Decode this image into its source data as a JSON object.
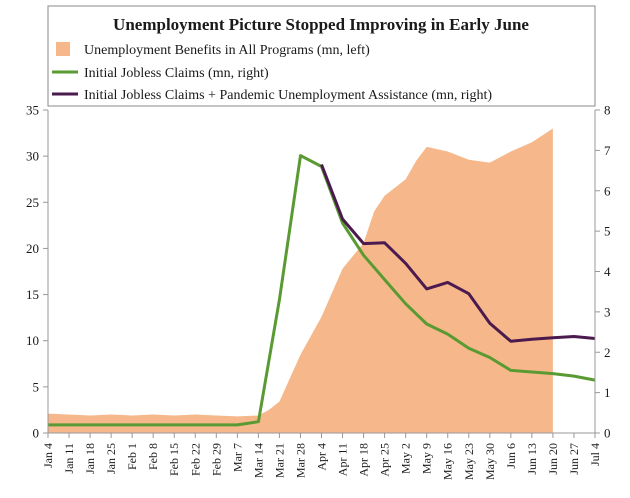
{
  "chart_data": {
    "type": "line",
    "title": "Unemployment Picture Stopped Improving in Early June",
    "categories": [
      "Jan 4",
      "Jan 11",
      "Jan 18",
      "Jan 25",
      "Feb 1",
      "Feb 8",
      "Feb 15",
      "Feb 22",
      "Feb 29",
      "Mar 7",
      "Mar 14",
      "Mar 21",
      "Mar 28",
      "Apr 4",
      "Apr 11",
      "Apr 18",
      "Apr 25",
      "May 2",
      "May 9",
      "May 16",
      "May 23",
      "May 30",
      "Jun 6",
      "Jun 13",
      "Jun 20",
      "Jun 27",
      "Jul 4"
    ],
    "y_left": {
      "ticks": [
        0,
        5,
        10,
        15,
        20,
        25,
        30,
        35
      ],
      "ylim": [
        0,
        35
      ]
    },
    "y_right": {
      "ticks": [
        0,
        1,
        2,
        3,
        4,
        5,
        6,
        7,
        8
      ],
      "ylim": [
        0,
        8
      ]
    },
    "series": [
      {
        "name": "Unemployment Benefits in All Programs (mn, left)",
        "kind": "area",
        "axis": "left",
        "color": "#f6b88b",
        "x": [
          0,
          1,
          2,
          3,
          4,
          5,
          6,
          7,
          8,
          9,
          10,
          10.5,
          11,
          12,
          13,
          14,
          15,
          15.5,
          16,
          17,
          17.5,
          18,
          19,
          20,
          21,
          22,
          23,
          24
        ],
        "values": [
          2.1,
          2.0,
          1.9,
          2.0,
          1.9,
          2.0,
          1.9,
          2.0,
          1.9,
          1.8,
          1.9,
          2.5,
          3.4,
          8.5,
          12.6,
          17.8,
          20.6,
          24.0,
          25.7,
          27.5,
          29.5,
          31.0,
          30.5,
          29.6,
          29.3,
          30.5,
          31.5,
          33.0
        ]
      },
      {
        "name": "Initial Jobless Claims (mn, right)",
        "kind": "line",
        "axis": "right",
        "color": "#5a9a32",
        "values": [
          0.2,
          0.2,
          0.2,
          0.2,
          0.2,
          0.2,
          0.2,
          0.2,
          0.2,
          0.2,
          0.28,
          3.3,
          6.87,
          6.6,
          5.2,
          4.4,
          3.8,
          3.2,
          2.7,
          2.45,
          2.1,
          1.87,
          1.55,
          1.51,
          1.47,
          1.41,
          1.31
        ]
      },
      {
        "name": "Initial Jobless Claims + Pandemic Unemployment Assistance (mn, right)",
        "kind": "line",
        "axis": "right",
        "color": "#4b1a4e",
        "x": [
          13,
          14,
          15,
          16,
          17,
          18,
          19,
          20,
          21,
          22,
          23,
          24,
          25,
          26
        ],
        "values": [
          6.65,
          5.3,
          4.69,
          4.71,
          4.2,
          3.57,
          3.73,
          3.45,
          2.72,
          2.27,
          2.32,
          2.36,
          2.39,
          2.34
        ]
      }
    ],
    "legend_position": "top"
  }
}
